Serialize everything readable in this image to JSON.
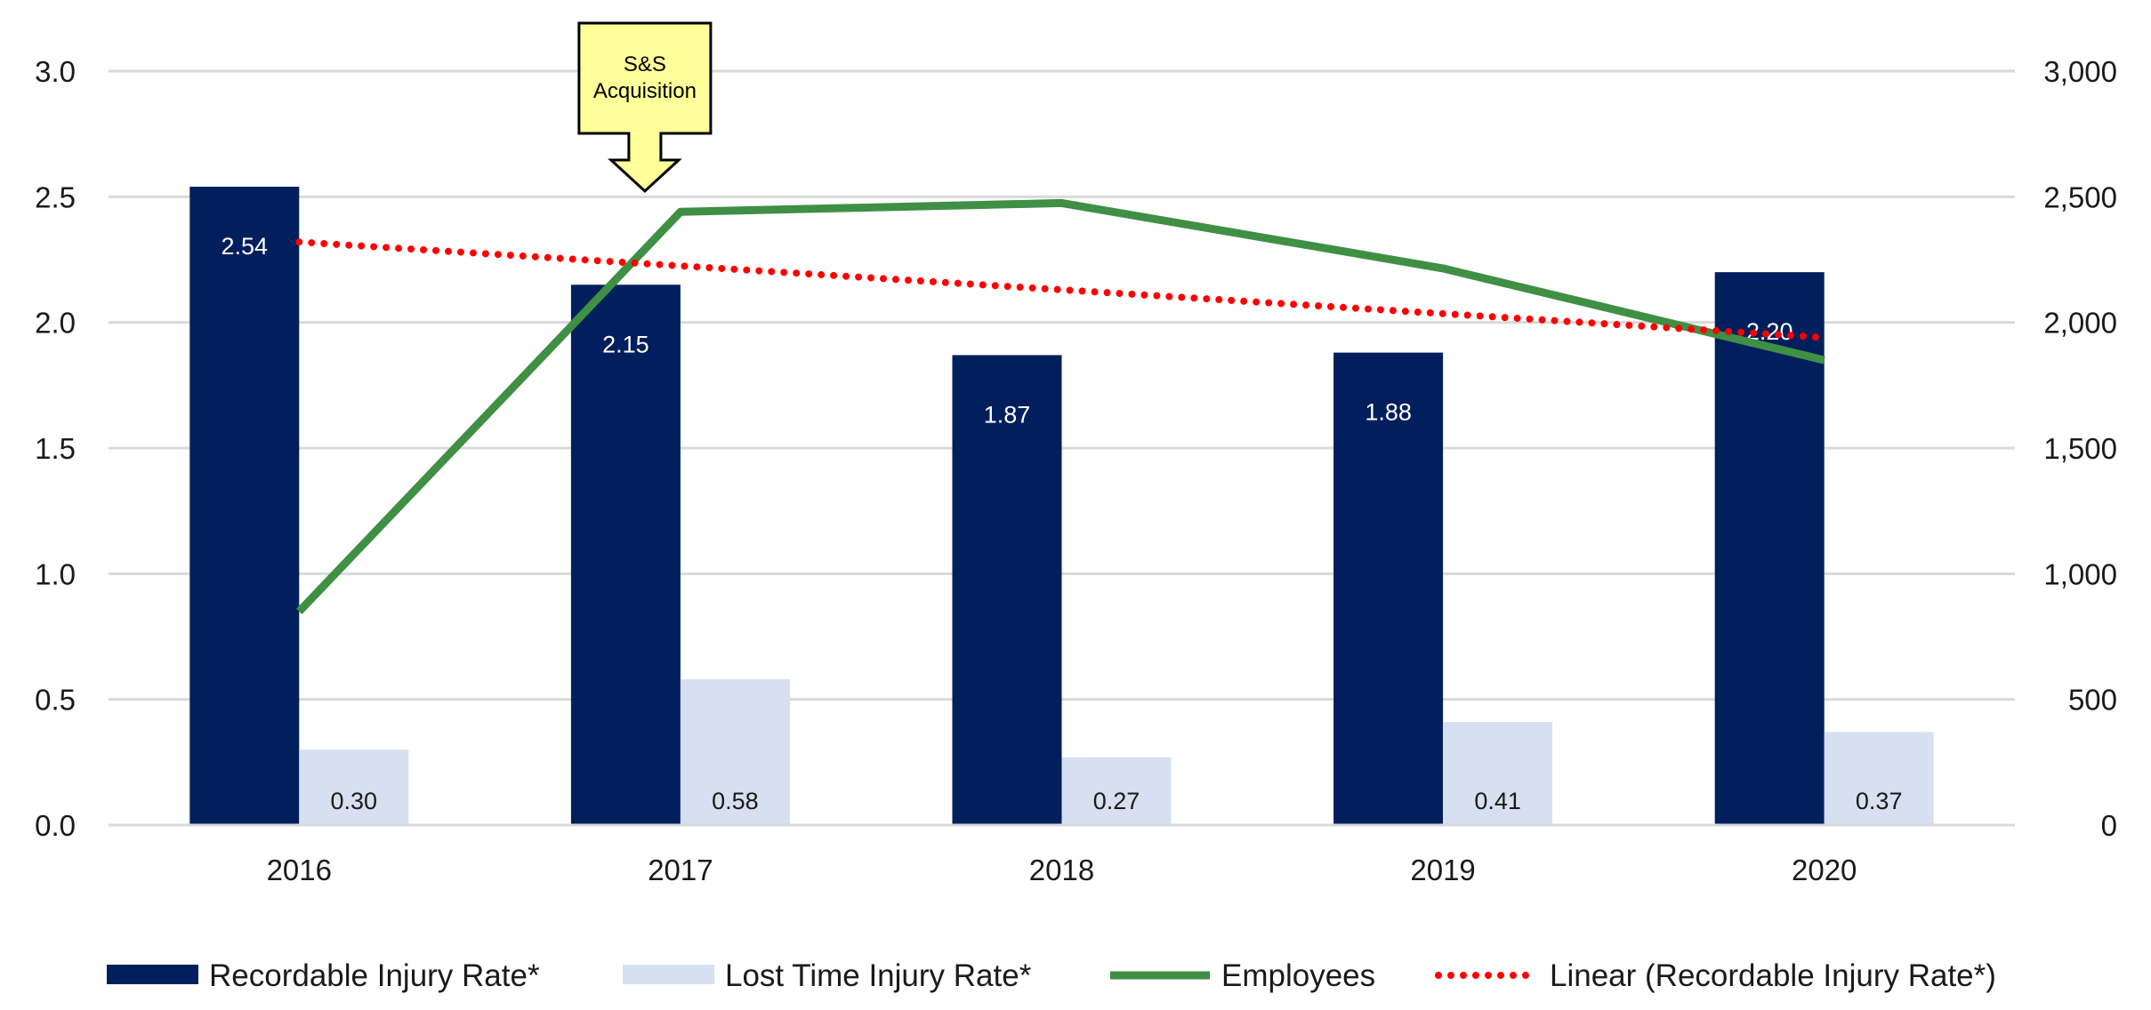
{
  "chart_data": {
    "type": "bar",
    "categories": [
      "2016",
      "2017",
      "2018",
      "2019",
      "2020"
    ],
    "series": [
      {
        "name": "Recordable Injury Rate*",
        "kind": "bar",
        "axis": "left",
        "color": "#001f5c",
        "values": [
          2.54,
          2.15,
          1.87,
          1.88,
          2.2
        ],
        "labels": [
          "2.54",
          "2.15",
          "1.87",
          "1.88",
          "2.20"
        ]
      },
      {
        "name": "Lost Time Injury Rate*",
        "kind": "bar",
        "axis": "left",
        "color": "#d6e0f0",
        "values": [
          0.3,
          0.58,
          0.27,
          0.41,
          0.37
        ],
        "labels": [
          "0.30",
          "0.58",
          "0.27",
          "0.41",
          "0.37"
        ]
      },
      {
        "name": "Employees",
        "kind": "line",
        "axis": "right",
        "color": "#3f8f45",
        "values": [
          850,
          2440,
          2475,
          2215,
          1850
        ]
      },
      {
        "name": "Linear (Recordable Injury Rate*)",
        "kind": "trendline",
        "axis": "left",
        "color": "#ff0000",
        "values": [
          2.32,
          2.22,
          2.13,
          2.03,
          1.94
        ]
      }
    ],
    "y_left": {
      "min": 0,
      "max": 3.0,
      "ticks": [
        "0.0",
        "0.5",
        "1.0",
        "1.5",
        "2.0",
        "2.5",
        "3.0"
      ]
    },
    "y_right": {
      "min": 0,
      "max": 3000,
      "ticks": [
        "0",
        "500",
        "1,000",
        "1,500",
        "2,000",
        "2,500",
        "3,000"
      ]
    },
    "grid": true,
    "legend_position": "bottom",
    "annotation": {
      "lines": [
        "S&S",
        "Acquisition"
      ],
      "category": "2017",
      "fill": "#ffff99"
    }
  }
}
